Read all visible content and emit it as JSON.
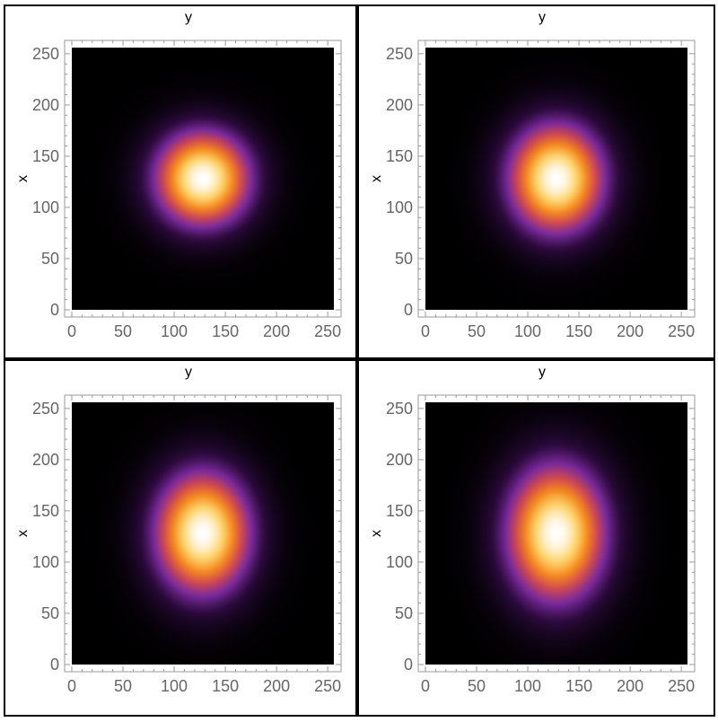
{
  "chart_data": [
    {
      "type": "heatmap",
      "title": "",
      "xlabel": "y",
      "ylabel": "x",
      "xlim": [
        0,
        256
      ],
      "ylim": [
        0,
        256
      ],
      "x_ticks": [
        0,
        50,
        100,
        150,
        200,
        250
      ],
      "y_ticks": [
        0,
        50,
        100,
        150,
        200,
        250
      ],
      "grid": false,
      "colormap": [
        "#000000",
        "#2a0a3a",
        "#7a2a9c",
        "#d04a50",
        "#f58a1f",
        "#fdd36a",
        "#ffffff"
      ],
      "peak_center": [
        128,
        128
      ],
      "spread_horizontal": 28,
      "spread_vertical": 28
    },
    {
      "type": "heatmap",
      "title": "",
      "xlabel": "y",
      "ylabel": "x",
      "xlim": [
        0,
        256
      ],
      "ylim": [
        0,
        256
      ],
      "x_ticks": [
        0,
        50,
        100,
        150,
        200,
        250
      ],
      "y_ticks": [
        0,
        50,
        100,
        150,
        200,
        250
      ],
      "grid": false,
      "colormap": [
        "#000000",
        "#2a0a3a",
        "#7a2a9c",
        "#d04a50",
        "#f58a1f",
        "#fdd36a",
        "#ffffff"
      ],
      "peak_center": [
        128,
        128
      ],
      "spread_horizontal": 28,
      "spread_vertical": 32
    },
    {
      "type": "heatmap",
      "title": "",
      "xlabel": "y",
      "ylabel": "x",
      "xlim": [
        0,
        256
      ],
      "ylim": [
        0,
        256
      ],
      "x_ticks": [
        0,
        50,
        100,
        150,
        200,
        250
      ],
      "y_ticks": [
        0,
        50,
        100,
        150,
        200,
        250
      ],
      "grid": false,
      "colormap": [
        "#000000",
        "#2a0a3a",
        "#7a2a9c",
        "#d04a50",
        "#f58a1f",
        "#fdd36a",
        "#ffffff"
      ],
      "peak_center": [
        128,
        128
      ],
      "spread_horizontal": 28,
      "spread_vertical": 36
    },
    {
      "type": "heatmap",
      "title": "",
      "xlabel": "y",
      "ylabel": "x",
      "xlim": [
        0,
        256
      ],
      "ylim": [
        0,
        256
      ],
      "x_ticks": [
        0,
        50,
        100,
        150,
        200,
        250
      ],
      "y_ticks": [
        0,
        50,
        100,
        150,
        200,
        250
      ],
      "grid": false,
      "colormap": [
        "#000000",
        "#2a0a3a",
        "#7a2a9c",
        "#d04a50",
        "#f58a1f",
        "#fdd36a",
        "#ffffff"
      ],
      "peak_center": [
        128,
        128
      ],
      "spread_horizontal": 29,
      "spread_vertical": 40
    }
  ]
}
